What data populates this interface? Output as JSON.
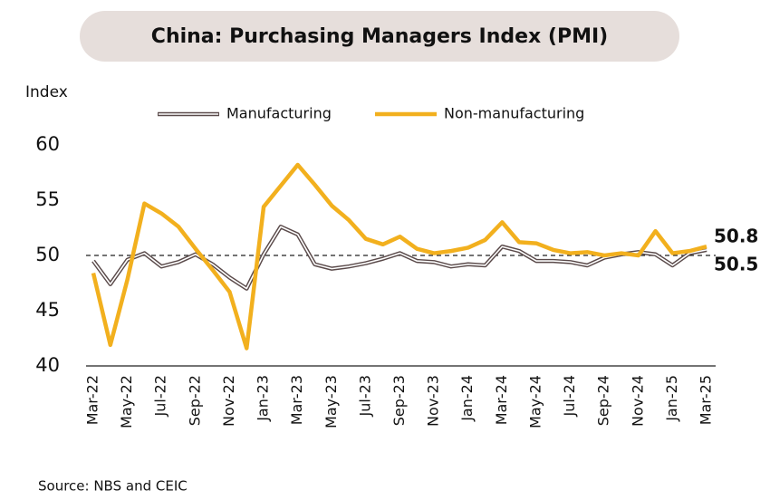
{
  "chart_data": {
    "type": "line",
    "title": "China: Purchasing Managers Index (PMI)",
    "y_label": "Index",
    "source": "Source: NBS and CEIC",
    "categories": [
      "Mar-22",
      null,
      "May-22",
      null,
      "Jul-22",
      null,
      "Sep-22",
      null,
      "Nov-22",
      null,
      "Jan-23",
      null,
      "Mar-23",
      null,
      "May-23",
      null,
      "Jul-23",
      null,
      "Sep-23",
      null,
      "Nov-23",
      null,
      "Jan-24",
      null,
      "Mar-24",
      null,
      "May-24",
      null,
      "Jul-24",
      null,
      "Sep-24",
      null,
      "Nov-24",
      null,
      "Jan-25",
      null,
      "Mar-25"
    ],
    "series": [
      {
        "name": "Manufacturing",
        "color": "#5a4a4a",
        "values": [
          49.5,
          47.4,
          49.6,
          50.2,
          49.0,
          49.4,
          50.1,
          49.2,
          48.0,
          47.0,
          50.1,
          52.6,
          51.9,
          49.2,
          48.8,
          49.0,
          49.3,
          49.7,
          50.2,
          49.5,
          49.4,
          49.0,
          49.2,
          49.1,
          50.8,
          50.4,
          49.5,
          49.5,
          49.4,
          49.1,
          49.8,
          50.1,
          50.3,
          50.1,
          49.1,
          50.2,
          50.5
        ]
      },
      {
        "name": "Non-manufacturing",
        "color": "#f2b01e",
        "values": [
          48.4,
          41.9,
          47.8,
          54.7,
          53.8,
          52.6,
          50.6,
          48.7,
          46.7,
          41.6,
          54.4,
          56.3,
          58.2,
          56.4,
          54.5,
          53.2,
          51.5,
          51.0,
          51.7,
          50.6,
          50.2,
          50.4,
          50.7,
          51.4,
          53.0,
          51.2,
          51.1,
          50.5,
          50.2,
          50.3,
          50.0,
          50.2,
          50.0,
          52.2,
          50.2,
          50.4,
          50.8
        ]
      }
    ],
    "ylim": [
      40,
      60
    ],
    "yticks": [
      40,
      45,
      50,
      55,
      60
    ],
    "reference_line": 50
  }
}
